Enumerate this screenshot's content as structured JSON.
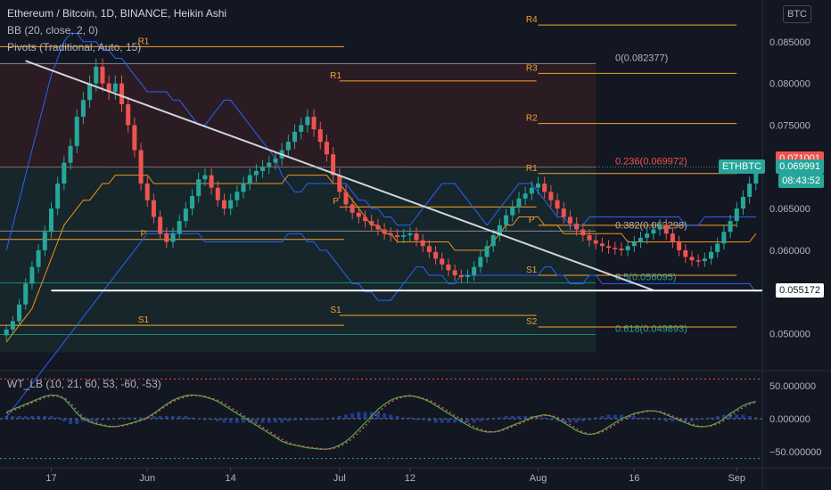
{
  "header": {
    "symbol_line": "Ethereum / Bitcoin, 1D, BINANCE, Heikin Ashi",
    "bb_line": "BB (20, close, 2, 0)",
    "pivots_line": "Pivots (Traditional, Auto, 15)",
    "currency_button": "BTC"
  },
  "oscillator": {
    "title": "WT_LB (10, 21, 60, 53, -60, -53)",
    "ticks": [
      "50.000000",
      "0.000000",
      "−50.000000"
    ],
    "tick_values": [
      50,
      0,
      -50
    ],
    "range": [
      -70,
      70
    ]
  },
  "price_tags": {
    "last_red": {
      "label": "0.071001",
      "value": 0.071001
    },
    "last": {
      "label": "0.069991",
      "value": 0.069991
    },
    "symbol": "ETHBTC",
    "countdown": "08:43:52",
    "hline": {
      "label": "0.055172",
      "value": 0.055172
    }
  },
  "colors": {
    "bull": "#26a69a",
    "bear": "#ef5350",
    "pivot": "#f7a12f",
    "bb": "#2962ff",
    "basis": "#f7931a",
    "trend": "#d1d4dc",
    "fib": "#b2b5be",
    "fib_red": "#ef5350",
    "fib_teal": "#26a69a",
    "wt1": "#4caf50",
    "wt2": "#ef5350",
    "bg": "#131722"
  },
  "chart_data": {
    "type": "candlestick",
    "title": "Ethereum / Bitcoin, 1D, BINANCE, Heikin Ashi",
    "y_axis": {
      "range": [
        0.046,
        0.09
      ],
      "ticks": [
        0.085,
        0.08,
        0.075,
        0.065,
        0.06,
        0.05
      ],
      "tick_labels": [
        "0.085000",
        "0.080000",
        "0.075000",
        "0.065000",
        "0.060000",
        "0.050000"
      ]
    },
    "x_axis": {
      "range": [
        "2021-05-09",
        "2021-09-05"
      ],
      "ticks": [
        "2021-05-17",
        "2021-06-01",
        "2021-06-14",
        "2021-07-01",
        "2021-07-12",
        "2021-08-01",
        "2021-08-16",
        "2021-09-01"
      ],
      "tick_labels": [
        "17",
        "Jun",
        "14",
        "Jul",
        "12",
        "Aug",
        "16",
        "Sep"
      ]
    },
    "heikin_ashi": {
      "start": "2021-05-10",
      "step_days": 1,
      "close": [
        0.0505,
        0.0515,
        0.0535,
        0.056,
        0.058,
        0.06,
        0.0622,
        0.065,
        0.068,
        0.0705,
        0.0725,
        0.076,
        0.078,
        0.08,
        0.082,
        0.08,
        0.079,
        0.08,
        0.0775,
        0.075,
        0.072,
        0.068,
        0.066,
        0.064,
        0.062,
        0.061,
        0.062,
        0.0635,
        0.065,
        0.0665,
        0.0685,
        0.069,
        0.0675,
        0.066,
        0.065,
        0.066,
        0.067,
        0.068,
        0.069,
        0.0695,
        0.07,
        0.0705,
        0.071,
        0.072,
        0.073,
        0.0742,
        0.075,
        0.076,
        0.0745,
        0.073,
        0.0715,
        0.069,
        0.067,
        0.0655,
        0.0645,
        0.064,
        0.0635,
        0.063,
        0.0625,
        0.062,
        0.0618,
        0.0616,
        0.0618,
        0.062,
        0.0612,
        0.0605,
        0.0598,
        0.059,
        0.0583,
        0.0576,
        0.057,
        0.0568,
        0.057,
        0.058,
        0.0592,
        0.0605,
        0.0618,
        0.063,
        0.0642,
        0.0652,
        0.0662,
        0.0668,
        0.0675,
        0.068,
        0.067,
        0.066,
        0.065,
        0.064,
        0.0632,
        0.0625,
        0.0618,
        0.0612,
        0.0608,
        0.0605,
        0.0603,
        0.0602,
        0.06,
        0.0605,
        0.061,
        0.0615,
        0.062,
        0.0625,
        0.063,
        0.062,
        0.061,
        0.06,
        0.0592,
        0.0588,
        0.0587,
        0.059,
        0.0598,
        0.0608,
        0.0622,
        0.0635,
        0.065,
        0.0664,
        0.068,
        0.07
      ],
      "open": [
        0.0498,
        0.0505,
        0.0515,
        0.0535,
        0.056,
        0.058,
        0.06,
        0.0622,
        0.065,
        0.068,
        0.0705,
        0.0725,
        0.076,
        0.078,
        0.08,
        0.082,
        0.08,
        0.079,
        0.08,
        0.0775,
        0.075,
        0.072,
        0.068,
        0.066,
        0.064,
        0.062,
        0.061,
        0.062,
        0.0635,
        0.065,
        0.0665,
        0.0685,
        0.069,
        0.0675,
        0.066,
        0.065,
        0.066,
        0.067,
        0.068,
        0.069,
        0.0695,
        0.07,
        0.0705,
        0.071,
        0.072,
        0.073,
        0.0742,
        0.075,
        0.076,
        0.0745,
        0.073,
        0.0715,
        0.069,
        0.067,
        0.0655,
        0.0645,
        0.064,
        0.0635,
        0.063,
        0.0625,
        0.062,
        0.0618,
        0.0616,
        0.0618,
        0.062,
        0.0612,
        0.0605,
        0.0598,
        0.059,
        0.0583,
        0.0576,
        0.057,
        0.0568,
        0.057,
        0.058,
        0.0592,
        0.0605,
        0.0618,
        0.063,
        0.0642,
        0.0652,
        0.0662,
        0.0668,
        0.0675,
        0.068,
        0.067,
        0.066,
        0.065,
        0.064,
        0.0632,
        0.0625,
        0.0618,
        0.0612,
        0.0608,
        0.0605,
        0.0603,
        0.0602,
        0.06,
        0.0605,
        0.061,
        0.0615,
        0.062,
        0.0625,
        0.063,
        0.062,
        0.061,
        0.06,
        0.0592,
        0.0588,
        0.0587,
        0.059,
        0.0598,
        0.0608,
        0.0622,
        0.0635,
        0.065,
        0.0664,
        0.068
      ]
    },
    "bollinger_upper": {
      "start": "2021-05-10",
      "values": [
        0.06,
        0.063,
        0.066,
        0.069,
        0.072,
        0.075,
        0.078,
        0.081,
        0.083,
        0.085,
        0.086,
        0.086,
        0.085,
        0.085,
        0.085,
        0.084,
        0.084,
        0.083,
        0.083,
        0.082,
        0.081,
        0.08,
        0.079,
        0.079,
        0.079,
        0.079,
        0.078,
        0.078,
        0.077,
        0.076,
        0.075,
        0.075,
        0.076,
        0.077,
        0.078,
        0.078,
        0.077,
        0.076,
        0.075,
        0.074,
        0.073,
        0.072,
        0.071,
        0.069,
        0.068,
        0.067,
        0.067,
        0.068,
        0.068,
        0.068,
        0.068,
        0.068,
        0.068,
        0.068,
        0.067,
        0.066,
        0.066,
        0.065,
        0.065,
        0.064,
        0.064,
        0.063,
        0.063,
        0.063,
        0.064,
        0.065,
        0.066,
        0.067,
        0.068,
        0.068,
        0.068,
        0.067,
        0.066,
        0.065,
        0.064,
        0.063,
        0.064,
        0.065,
        0.066,
        0.067,
        0.068,
        0.068,
        0.068,
        0.067,
        0.066,
        0.065,
        0.064,
        0.064,
        0.063,
        0.063,
        0.063,
        0.064,
        0.064,
        0.064,
        0.064,
        0.064,
        0.064,
        0.064,
        0.064,
        0.064,
        0.064,
        0.064,
        0.064,
        0.064,
        0.064,
        0.064,
        0.063,
        0.063,
        0.063,
        0.064,
        0.064,
        0.064,
        0.064,
        0.064,
        0.064,
        0.064,
        0.064,
        0.064
      ]
    },
    "bollinger_basis": {
      "start": "2021-05-10",
      "values": [
        0.049,
        0.05,
        0.051,
        0.052,
        0.053,
        0.055,
        0.057,
        0.059,
        0.061,
        0.063,
        0.064,
        0.065,
        0.066,
        0.066,
        0.067,
        0.068,
        0.068,
        0.069,
        0.069,
        0.069,
        0.069,
        0.069,
        0.069,
        0.068,
        0.068,
        0.068,
        0.068,
        0.068,
        0.068,
        0.068,
        0.068,
        0.068,
        0.068,
        0.068,
        0.068,
        0.068,
        0.068,
        0.068,
        0.068,
        0.068,
        0.068,
        0.068,
        0.068,
        0.068,
        0.069,
        0.069,
        0.069,
        0.069,
        0.069,
        0.069,
        0.069,
        0.068,
        0.068,
        0.067,
        0.066,
        0.065,
        0.064,
        0.063,
        0.063,
        0.062,
        0.062,
        0.061,
        0.061,
        0.061,
        0.061,
        0.061,
        0.061,
        0.061,
        0.061,
        0.061,
        0.06,
        0.06,
        0.06,
        0.06,
        0.06,
        0.06,
        0.061,
        0.062,
        0.063,
        0.063,
        0.064,
        0.064,
        0.064,
        0.064,
        0.063,
        0.063,
        0.063,
        0.062,
        0.062,
        0.062,
        0.062,
        0.062,
        0.062,
        0.062,
        0.062,
        0.062,
        0.062,
        0.061,
        0.061,
        0.061,
        0.061,
        0.061,
        0.061,
        0.061,
        0.061,
        0.061,
        0.061,
        0.061,
        0.061,
        0.061,
        0.061,
        0.061,
        0.061,
        0.061,
        0.061,
        0.061,
        0.061,
        0.062
      ]
    },
    "bollinger_lower": {
      "start": "2021-05-10",
      "values": [
        0.04,
        0.041,
        0.042,
        0.043,
        0.044,
        0.045,
        0.046,
        0.047,
        0.048,
        0.049,
        0.05,
        0.051,
        0.052,
        0.053,
        0.054,
        0.055,
        0.056,
        0.057,
        0.058,
        0.059,
        0.06,
        0.061,
        0.062,
        0.062,
        0.062,
        0.062,
        0.062,
        0.062,
        0.062,
        0.062,
        0.062,
        0.061,
        0.061,
        0.061,
        0.061,
        0.061,
        0.061,
        0.061,
        0.061,
        0.061,
        0.061,
        0.061,
        0.061,
        0.061,
        0.062,
        0.062,
        0.062,
        0.061,
        0.061,
        0.06,
        0.06,
        0.059,
        0.058,
        0.057,
        0.056,
        0.056,
        0.055,
        0.055,
        0.054,
        0.054,
        0.054,
        0.055,
        0.056,
        0.057,
        0.058,
        0.058,
        0.057,
        0.057,
        0.057,
        0.056,
        0.056,
        0.057,
        0.057,
        0.057,
        0.057,
        0.057,
        0.057,
        0.057,
        0.057,
        0.057,
        0.057,
        0.057,
        0.057,
        0.057,
        0.058,
        0.058,
        0.057,
        0.057,
        0.056,
        0.056,
        0.056,
        0.057,
        0.057,
        0.056,
        0.056,
        0.056,
        0.056,
        0.056,
        0.056,
        0.056,
        0.056,
        0.056,
        0.056,
        0.056,
        0.056,
        0.056,
        0.056,
        0.056,
        0.056,
        0.056,
        0.056,
        0.056,
        0.056,
        0.056,
        0.056,
        0.056,
        0.056,
        0.055
      ]
    },
    "pivots": [
      {
        "label": "R1",
        "value": 0.0844,
        "from": "2021-05-09",
        "to": "2021-07-02"
      },
      {
        "label": "P",
        "value": 0.0613,
        "from": "2021-05-09",
        "to": "2021-07-02"
      },
      {
        "label": "S1",
        "value": 0.051,
        "from": "2021-05-09",
        "to": "2021-07-02"
      },
      {
        "label": "R1",
        "value": 0.0803,
        "from": "2021-07-01",
        "to": "2021-08-01"
      },
      {
        "label": "P",
        "value": 0.0652,
        "from": "2021-07-01",
        "to": "2021-08-01"
      },
      {
        "label": "S1",
        "value": 0.0522,
        "from": "2021-07-01",
        "to": "2021-08-01"
      },
      {
        "label": "R4",
        "value": 0.087,
        "from": "2021-08-01",
        "to": "2021-09-01"
      },
      {
        "label": "R3",
        "value": 0.0812,
        "from": "2021-08-01",
        "to": "2021-09-01"
      },
      {
        "label": "R2",
        "value": 0.0752,
        "from": "2021-08-01",
        "to": "2021-09-01"
      },
      {
        "label": "R1",
        "value": 0.0692,
        "from": "2021-08-01",
        "to": "2021-09-01"
      },
      {
        "label": "P",
        "value": 0.063,
        "from": "2021-08-01",
        "to": "2021-09-01"
      },
      {
        "label": "S1",
        "value": 0.057,
        "from": "2021-08-01",
        "to": "2021-09-01"
      },
      {
        "label": "S2",
        "value": 0.0508,
        "from": "2021-08-01",
        "to": "2021-09-01"
      }
    ],
    "fibonacci": [
      {
        "label": "0(0.082377)",
        "value": 0.082377,
        "color": "#b2b5be"
      },
      {
        "label": "0.236(0.069972)",
        "value": 0.069972,
        "color": "#ef5350"
      },
      {
        "label": "0.382(0.062298)",
        "value": 0.062298,
        "color": "#b2b5be"
      },
      {
        "label": "0.5(0.056095)",
        "value": 0.056095,
        "color": "#26a69a"
      },
      {
        "label": "0.618(0.049893)",
        "value": 0.049893,
        "color": "#26a69a"
      }
    ],
    "trendline": {
      "from": [
        "2021-05-13",
        0.0827
      ],
      "to": [
        "2021-08-19",
        0.0552
      ]
    },
    "horizontal_line": {
      "value": 0.055172,
      "from": "2021-05-17"
    },
    "wavetrend": {
      "start": "2021-05-10",
      "wt1": [
        10,
        14,
        18,
        22,
        26,
        30,
        34,
        36,
        35,
        30,
        20,
        8,
        0,
        -5,
        -8,
        -10,
        -12,
        -12,
        -10,
        -8,
        -5,
        -2,
        2,
        8,
        15,
        22,
        28,
        32,
        35,
        36,
        35,
        33,
        30,
        26,
        20,
        14,
        8,
        2,
        -4,
        -10,
        -16,
        -22,
        -28,
        -34,
        -38,
        -40,
        -42,
        -44,
        -45,
        -46,
        -46,
        -44,
        -40,
        -34,
        -26,
        -16,
        -6,
        4,
        14,
        22,
        28,
        32,
        34,
        35,
        33,
        30,
        26,
        20,
        14,
        8,
        2,
        -4,
        -10,
        -15,
        -18,
        -20,
        -20,
        -18,
        -14,
        -10,
        -6,
        -2,
        2,
        4,
        6,
        4,
        0,
        -6,
        -12,
        -18,
        -22,
        -24,
        -22,
        -18,
        -12,
        -6,
        0,
        4,
        8,
        10,
        12,
        12,
        10,
        6,
        2,
        -2,
        -6,
        -10,
        -12,
        -12,
        -10,
        -6,
        0,
        8,
        14,
        20,
        24,
        26
      ],
      "wt2": [
        8,
        12,
        16,
        20,
        24,
        28,
        32,
        34,
        34,
        32,
        24,
        12,
        2,
        -3,
        -6,
        -9,
        -11,
        -12,
        -11,
        -9,
        -6,
        -3,
        1,
        6,
        13,
        20,
        26,
        30,
        33,
        35,
        35,
        34,
        31,
        28,
        23,
        17,
        11,
        5,
        -1,
        -7,
        -13,
        -19,
        -25,
        -31,
        -36,
        -39,
        -41,
        -43,
        -44,
        -45,
        -46,
        -45,
        -42,
        -37,
        -30,
        -21,
        -11,
        -1,
        9,
        18,
        25,
        30,
        33,
        34,
        34,
        31,
        28,
        23,
        17,
        11,
        5,
        -1,
        -7,
        -12,
        -16,
        -19,
        -20,
        -19,
        -16,
        -12,
        -8,
        -4,
        0,
        3,
        5,
        5,
        2,
        -3,
        -9,
        -15,
        -20,
        -23,
        -23,
        -20,
        -15,
        -9,
        -3,
        2,
        6,
        9,
        11,
        12,
        11,
        8,
        4,
        0,
        -4,
        -8,
        -11,
        -12,
        -11,
        -8,
        -3,
        4,
        11,
        17,
        22,
        25
      ],
      "overbought": 60,
      "oversold": -60
    }
  }
}
